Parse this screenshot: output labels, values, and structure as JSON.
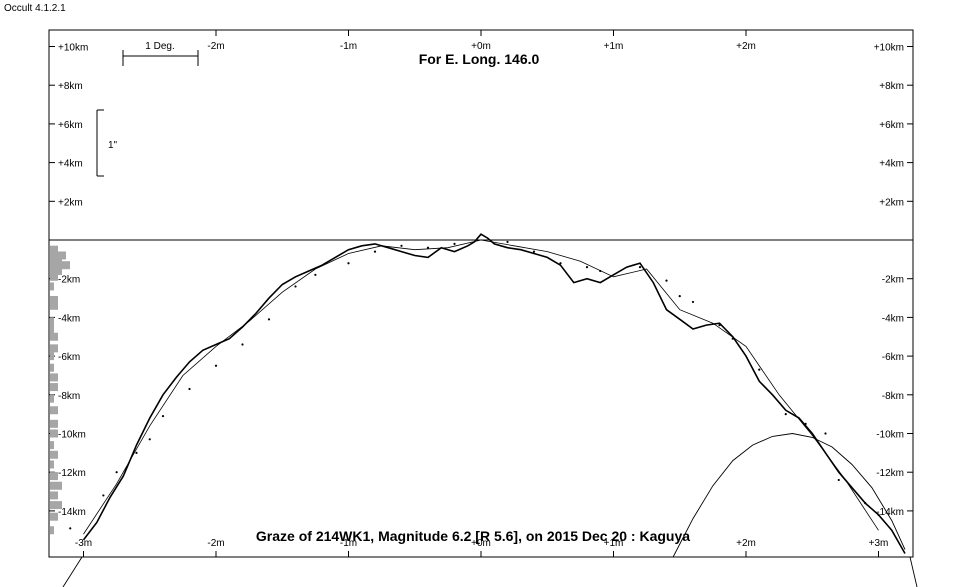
{
  "window": {
    "app_title": "Occult 4.1.2.1"
  },
  "chart_data": {
    "type": "line",
    "title": "For E. Long. 146.0",
    "caption": "Graze of  214WK1,  Magnitude 6.2 [R 5.6],  on 2015 Dec 20  :  Kaguya",
    "scale_bar_label": "1 Deg.",
    "arcsec_bar_label": "1\"",
    "x_ticks_top": [
      "-2m",
      "-1m",
      "+0m",
      "+1m",
      "+2m"
    ],
    "x_ticks_bottom": [
      "-3m",
      "-2m",
      "-1m",
      "+0m",
      "+1m",
      "+2m",
      "+3m"
    ],
    "y_ticks_upper": [
      "+10km",
      "+8km",
      "+6km",
      "+4km",
      "+2km"
    ],
    "y_ticks_lower": [
      "-2km",
      "-4km",
      "-6km",
      "-8km",
      "-10km",
      "-12km",
      "-14km"
    ],
    "x_unit": "minutes",
    "y_unit": "km",
    "xlim": [
      -3.25,
      3.25
    ],
    "ylim": [
      -16.5,
      11
    ],
    "limb_profile": {
      "x": [
        -3.0,
        -2.9,
        -2.8,
        -2.7,
        -2.6,
        -2.5,
        -2.4,
        -2.3,
        -2.2,
        -2.1,
        -2.0,
        -1.9,
        -1.8,
        -1.7,
        -1.6,
        -1.5,
        -1.4,
        -1.3,
        -1.2,
        -1.1,
        -1.0,
        -0.9,
        -0.8,
        -0.7,
        -0.6,
        -0.5,
        -0.4,
        -0.3,
        -0.2,
        -0.1,
        -0.05,
        0.0,
        0.05,
        0.1,
        0.2,
        0.3,
        0.4,
        0.5,
        0.6,
        0.7,
        0.8,
        0.9,
        1.0,
        1.1,
        1.2,
        1.3,
        1.4,
        1.5,
        1.6,
        1.7,
        1.8,
        1.9,
        2.0,
        2.1,
        2.2,
        2.3,
        2.4,
        2.5,
        2.6,
        2.7,
        2.8,
        2.9,
        3.0,
        3.1,
        3.2
      ],
      "y": [
        -15.5,
        -14.6,
        -13.3,
        -12.2,
        -10.6,
        -9.2,
        -8.0,
        -7.1,
        -6.3,
        -5.7,
        -5.4,
        -5.1,
        -4.5,
        -3.8,
        -3.0,
        -2.3,
        -1.9,
        -1.6,
        -1.3,
        -0.9,
        -0.5,
        -0.3,
        -0.2,
        -0.4,
        -0.6,
        -0.8,
        -0.9,
        -0.4,
        -0.6,
        -0.3,
        -0.1,
        0.3,
        0.1,
        -0.2,
        -0.4,
        -0.5,
        -0.7,
        -0.9,
        -1.3,
        -2.2,
        -2.0,
        -2.2,
        -1.8,
        -1.4,
        -1.2,
        -2.2,
        -3.6,
        -4.1,
        -4.6,
        -4.4,
        -4.3,
        -5.0,
        -6.0,
        -7.3,
        -8.0,
        -8.8,
        -9.2,
        -10.0,
        -11.0,
        -12.0,
        -12.8,
        -13.6,
        -14.2,
        -15.0,
        -16.2
      ]
    },
    "smooth_limb": {
      "x": [
        -3.0,
        -2.75,
        -2.5,
        -2.25,
        -2.0,
        -1.75,
        -1.5,
        -1.25,
        -1.0,
        -0.75,
        -0.5,
        -0.25,
        0.0,
        0.25,
        0.5,
        0.75,
        1.0,
        1.25,
        1.5,
        1.75,
        2.0,
        2.25,
        2.5,
        2.75,
        3.0
      ],
      "y": [
        -15.2,
        -12.6,
        -9.6,
        -7.0,
        -5.5,
        -4.2,
        -2.7,
        -1.5,
        -0.7,
        -0.3,
        -0.5,
        -0.4,
        0.0,
        -0.3,
        -0.6,
        -1.1,
        -1.9,
        -1.5,
        -3.6,
        -4.3,
        -5.5,
        -8.0,
        -10.1,
        -12.4,
        -15.0
      ]
    },
    "shadow_arc": {
      "x": [
        1.45,
        1.6,
        1.75,
        1.9,
        2.05,
        2.2,
        2.35,
        2.5,
        2.65,
        2.8,
        2.95,
        3.1,
        3.2
      ],
      "y": [
        -16.5,
        -14.4,
        -12.7,
        -11.4,
        -10.6,
        -10.15,
        -10.0,
        -10.2,
        -10.7,
        -11.6,
        -12.8,
        -14.5,
        -16.0
      ]
    },
    "predicted_points": {
      "x": [
        -3.1,
        -2.85,
        -2.75,
        -2.6,
        -2.5,
        -2.4,
        -2.2,
        -2.0,
        -1.8,
        -1.6,
        -1.4,
        -1.25,
        -1.0,
        -0.8,
        -0.6,
        -0.4,
        -0.2,
        0.2,
        0.4,
        0.6,
        0.8,
        0.9,
        1.2,
        1.4,
        1.5,
        1.6,
        1.8,
        1.9,
        2.1,
        2.3,
        2.45,
        2.6,
        2.7,
        2.9,
        3.0
      ],
      "y": [
        -14.9,
        -13.2,
        -12.0,
        -11.0,
        -10.3,
        -9.1,
        -7.7,
        -6.5,
        -5.4,
        -4.1,
        -2.4,
        -1.8,
        -1.2,
        -0.6,
        -0.3,
        -0.4,
        -0.2,
        -0.1,
        -0.6,
        -1.2,
        -1.4,
        -1.6,
        -1.4,
        -2.1,
        -2.9,
        -3.2,
        -4.4,
        -5.1,
        -6.7,
        -9.0,
        -9.5,
        -10.0,
        -12.4,
        -13.6,
        -14.2
      ]
    },
    "histogram": {
      "y": [
        -0.5,
        -0.8,
        -1.0,
        -1.3,
        -1.6,
        -1.9,
        -2.4,
        -3.1,
        -3.4,
        -4.2,
        -4.6,
        -5.0,
        -5.6,
        -6.0,
        -6.6,
        -7.1,
        -7.6,
        -8.2,
        -8.8,
        -9.5,
        -10.0,
        -10.6,
        -11.1,
        -11.6,
        -12.2,
        -12.7,
        -13.2,
        -13.7,
        -14.3,
        -15.0
      ],
      "count": [
        2,
        4,
        3,
        5,
        3,
        2,
        1,
        2,
        2,
        1,
        1,
        2,
        2,
        1,
        1,
        2,
        2,
        1,
        2,
        2,
        2,
        1,
        2,
        1,
        2,
        3,
        2,
        3,
        2,
        1
      ]
    }
  }
}
